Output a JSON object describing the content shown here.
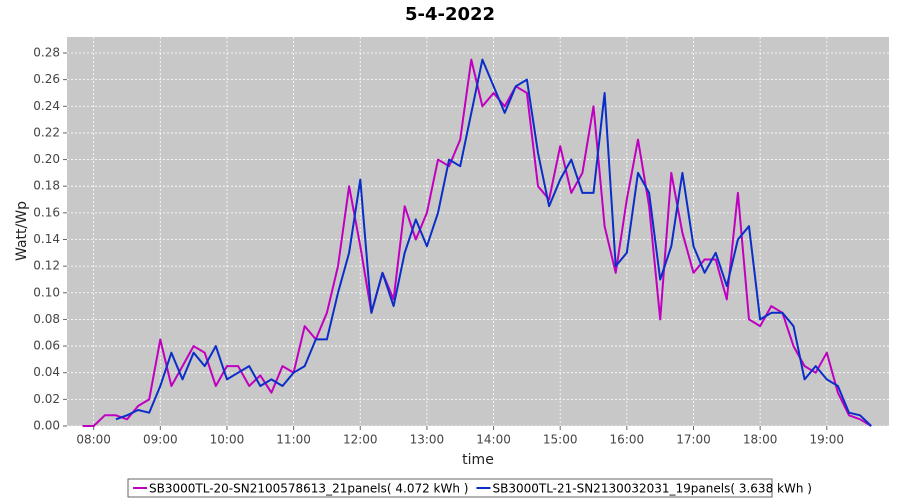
{
  "chart_data": {
    "type": "line",
    "title": "5-4-2022",
    "x_label": "time",
    "y_label": "Watt/Wp",
    "x": [
      "07:50",
      "08:00",
      "08:10",
      "08:20",
      "08:30",
      "08:40",
      "08:50",
      "09:00",
      "09:10",
      "09:20",
      "09:30",
      "09:40",
      "09:50",
      "10:00",
      "10:10",
      "10:20",
      "10:30",
      "10:40",
      "10:50",
      "11:00",
      "11:10",
      "11:20",
      "11:30",
      "11:40",
      "11:50",
      "12:00",
      "12:10",
      "12:20",
      "12:30",
      "12:40",
      "12:50",
      "13:00",
      "13:10",
      "13:20",
      "13:30",
      "13:40",
      "13:50",
      "14:00",
      "14:10",
      "14:20",
      "14:30",
      "14:40",
      "14:50",
      "15:00",
      "15:10",
      "15:20",
      "15:30",
      "15:40",
      "15:50",
      "16:00",
      "16:10",
      "16:20",
      "16:30",
      "16:40",
      "16:50",
      "17:00",
      "17:10",
      "17:20",
      "17:30",
      "17:40",
      "17:50",
      "18:00",
      "18:10",
      "18:20",
      "18:30",
      "18:40",
      "18:50",
      "19:00",
      "19:10",
      "19:20",
      "19:30",
      "19:40"
    ],
    "series": [
      {
        "name": "SB3000TL-20-SN2100578613_21panels( 4.072 kWh )",
        "color": "#c000c0",
        "values": [
          0,
          0,
          0.008,
          0.008,
          0.005,
          0.015,
          0.02,
          0.065,
          0.03,
          0.045,
          0.06,
          0.055,
          0.03,
          0.045,
          0.045,
          0.03,
          0.038,
          0.025,
          0.045,
          0.04,
          0.075,
          0.065,
          0.085,
          0.12,
          0.18,
          0.135,
          0.085,
          0.115,
          0.095,
          0.165,
          0.14,
          0.16,
          0.2,
          0.195,
          0.215,
          0.275,
          0.24,
          0.25,
          0.24,
          0.255,
          0.25,
          0.18,
          0.17,
          0.21,
          0.175,
          0.19,
          0.24,
          0.15,
          0.115,
          0.17,
          0.215,
          0.165,
          0.08,
          0.19,
          0.145,
          0.115,
          0.125,
          0.125,
          0.095,
          0.175,
          0.08,
          0.075,
          0.09,
          0.085,
          0.06,
          0.045,
          0.04,
          0.055,
          0.025,
          0.008,
          0.005,
          0
        ]
      },
      {
        "name": "SB3000TL-21-SN2130032031_19panels( 3.638 kWh )",
        "color": "#0a2ec8",
        "values": [
          null,
          null,
          null,
          0.005,
          0.008,
          0.012,
          0.01,
          0.03,
          0.055,
          0.035,
          0.055,
          0.045,
          0.06,
          0.035,
          0.04,
          0.045,
          0.03,
          0.035,
          0.03,
          0.04,
          0.045,
          0.065,
          0.065,
          0.1,
          0.13,
          0.185,
          0.085,
          0.115,
          0.09,
          0.13,
          0.155,
          0.135,
          0.16,
          0.2,
          0.195,
          0.235,
          0.275,
          0.255,
          0.235,
          0.255,
          0.26,
          0.205,
          0.165,
          0.185,
          0.2,
          0.175,
          0.175,
          0.25,
          0.12,
          0.13,
          0.19,
          0.175,
          0.11,
          0.135,
          0.19,
          0.135,
          0.115,
          0.13,
          0.105,
          0.14,
          0.15,
          0.08,
          0.085,
          0.085,
          0.075,
          0.035,
          0.045,
          0.035,
          0.03,
          0.01,
          0.008,
          0
        ]
      }
    ],
    "xlim": [
      "07:36",
      "19:56"
    ],
    "xticks": [
      "08:00",
      "09:00",
      "10:00",
      "11:00",
      "12:00",
      "13:00",
      "14:00",
      "15:00",
      "16:00",
      "17:00",
      "18:00",
      "19:00"
    ],
    "ylim": [
      0,
      0.292
    ],
    "yticks": [
      {
        "value": 0,
        "label": "0.00"
      },
      {
        "value": 0.02,
        "label": "0.02"
      },
      {
        "value": 0.04,
        "label": "0.04"
      },
      {
        "value": 0.06,
        "label": "0.06"
      },
      {
        "value": 0.08,
        "label": "0.08"
      },
      {
        "value": 0.1,
        "label": "0.10"
      },
      {
        "value": 0.12,
        "label": "0.12"
      },
      {
        "value": 0.14,
        "label": "0.14"
      },
      {
        "value": 0.16,
        "label": "0.16"
      },
      {
        "value": 0.18,
        "label": "0.18"
      },
      {
        "value": 0.2,
        "label": "0.20"
      },
      {
        "value": 0.22,
        "label": "0.22"
      },
      {
        "value": 0.24,
        "label": "0.24"
      },
      {
        "value": 0.26,
        "label": "0.26"
      },
      {
        "value": 0.28,
        "label": "0.28"
      }
    ],
    "grid": true,
    "legend": "bottom"
  }
}
